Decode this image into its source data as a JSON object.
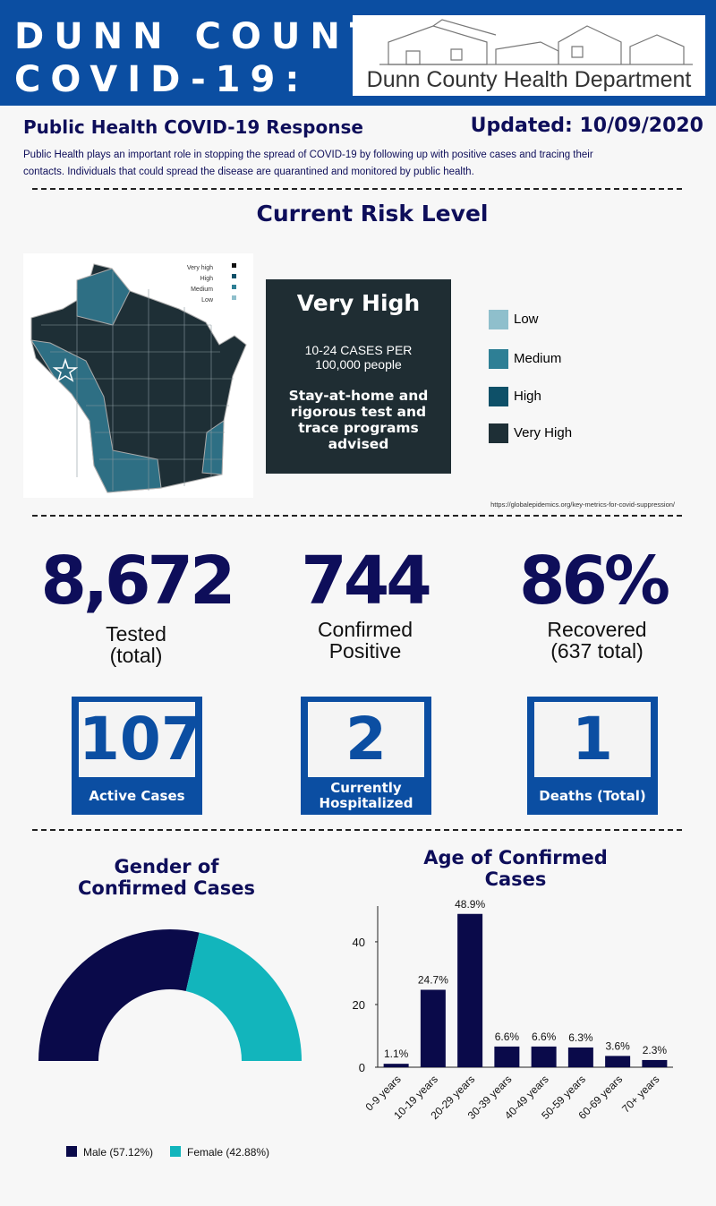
{
  "header": {
    "title_line1": "DUNN COUNTY",
    "title_line2": "COVID-19:",
    "logo_text": "Dunn County Health Department"
  },
  "subheader": {
    "left": "Public Health COVID-19 Response",
    "right": "Updated: 10/09/2020"
  },
  "intro": "Public Health plays an important role in stopping the spread of COVID-19 by following up with positive cases and tracing their contacts. Individuals that could spread the disease are quarantined and monitored by public health.",
  "risk": {
    "heading": "Current Risk Level",
    "map_legend": [
      "Very high",
      "High",
      "Medium",
      "Low"
    ],
    "level": "Very High",
    "rate": "10-24 CASES PER 100,000 people",
    "advice": "Stay-at-home and rigorous test and trace programs advised",
    "legend": [
      "Low",
      "Medium",
      "High",
      "Very High"
    ],
    "source": "https://globalepidemics.org/key-metrics-for-covid-suppression/"
  },
  "stats": [
    {
      "value": "8,672",
      "label": "Tested (total)"
    },
    {
      "value": "744",
      "label": "Confirmed Positive"
    },
    {
      "value": "86%",
      "label": "Recovered (637 total)"
    }
  ],
  "boxes": [
    {
      "value": "107",
      "label": "Active Cases"
    },
    {
      "value": "2",
      "label": "Currently Hospitalized"
    },
    {
      "value": "1",
      "label": "Deaths (Total)"
    }
  ],
  "chart_data": [
    {
      "type": "pie",
      "title": "Gender of Confirmed Cases",
      "categories": [
        "Male (57.12%)",
        "Female (42.88%)"
      ],
      "values": [
        57.12,
        42.88
      ],
      "colors": [
        "#0a0a4a",
        "#12b5bc"
      ]
    },
    {
      "type": "bar",
      "title": "Age of Confirmed Cases",
      "categories": [
        "0-9 years",
        "10-19 years",
        "20-29 years",
        "30-39 years",
        "40-49 years",
        "50-59 years",
        "60-69 years",
        "70+ years"
      ],
      "values": [
        1.1,
        24.7,
        48.9,
        6.6,
        6.6,
        6.3,
        3.6,
        2.3
      ],
      "value_labels": [
        "1.1%",
        "24.7%",
        "48.9%",
        "6.6%",
        "6.6%",
        "6.3%",
        "3.6%",
        "2.3%"
      ],
      "color": "#0a0a4a",
      "ylim": [
        0,
        51.4
      ],
      "yticks": [
        0,
        20,
        40
      ]
    }
  ]
}
